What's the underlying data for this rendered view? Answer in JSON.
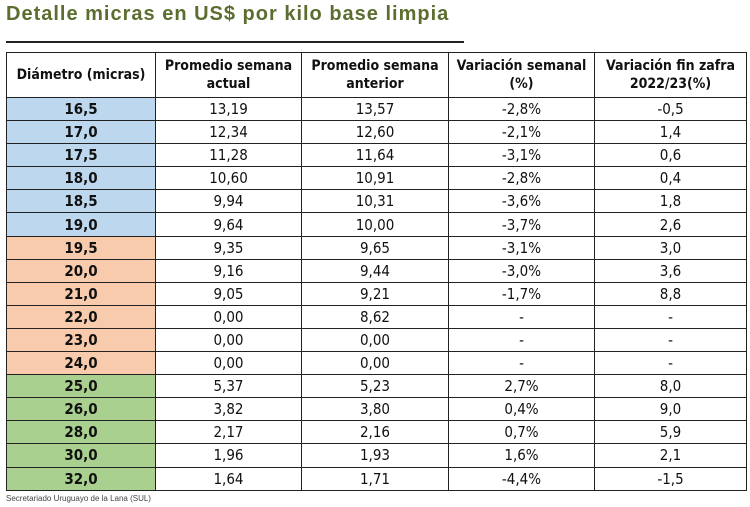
{
  "title": "Detalle micras en US$ por kilo base limpia",
  "colors": {
    "blue": "#bdd7ee",
    "orange": "#f8cbad",
    "green": "#a9d08e"
  },
  "table": {
    "headers": [
      "Diámetro (micras)",
      "Promedio semana actual",
      "Promedio semana anterior",
      "Variación semanal (%)",
      "Variación fin zafra 2022/23(%)"
    ],
    "rows": [
      {
        "group": "blue",
        "cells": [
          "16,5",
          "13,19",
          "13,57",
          "-2,8%",
          "-0,5"
        ]
      },
      {
        "group": "blue",
        "cells": [
          "17,0",
          "12,34",
          "12,60",
          "-2,1%",
          "1,4"
        ]
      },
      {
        "group": "blue",
        "cells": [
          "17,5",
          "11,28",
          "11,64",
          "-3,1%",
          "0,6"
        ]
      },
      {
        "group": "blue",
        "cells": [
          "18,0",
          "10,60",
          "10,91",
          "-2,8%",
          "0,4"
        ]
      },
      {
        "group": "blue",
        "cells": [
          "18,5",
          "9,94",
          "10,31",
          "-3,6%",
          "1,8"
        ]
      },
      {
        "group": "blue",
        "cells": [
          "19,0",
          "9,64",
          "10,00",
          "-3,7%",
          "2,6"
        ]
      },
      {
        "group": "orange",
        "cells": [
          "19,5",
          "9,35",
          "9,65",
          "-3,1%",
          "3,0"
        ]
      },
      {
        "group": "orange",
        "cells": [
          "20,0",
          "9,16",
          "9,44",
          "-3,0%",
          "3,6"
        ]
      },
      {
        "group": "orange",
        "cells": [
          "21,0",
          "9,05",
          "9,21",
          "-1,7%",
          "8,8"
        ]
      },
      {
        "group": "orange",
        "cells": [
          "22,0",
          "0,00",
          "8,62",
          "-",
          "-"
        ]
      },
      {
        "group": "orange",
        "cells": [
          "23,0",
          "0,00",
          "0,00",
          "-",
          "-"
        ]
      },
      {
        "group": "orange",
        "cells": [
          "24,0",
          "0,00",
          "0,00",
          "-",
          "-"
        ]
      },
      {
        "group": "green",
        "cells": [
          "25,0",
          "5,37",
          "5,23",
          "2,7%",
          "8,0"
        ]
      },
      {
        "group": "green",
        "cells": [
          "26,0",
          "3,82",
          "3,80",
          "0,4%",
          "9,0"
        ]
      },
      {
        "group": "green",
        "cells": [
          "28,0",
          "2,17",
          "2,16",
          "0,7%",
          "5,9"
        ]
      },
      {
        "group": "green",
        "cells": [
          "30,0",
          "1,96",
          "1,93",
          "1,6%",
          "2,1"
        ]
      },
      {
        "group": "green",
        "cells": [
          "32,0",
          "1,64",
          "1,71",
          "-4,4%",
          "-1,5"
        ]
      }
    ]
  },
  "footer": "Secretariado Uruguayo de la Lana (SUL)"
}
